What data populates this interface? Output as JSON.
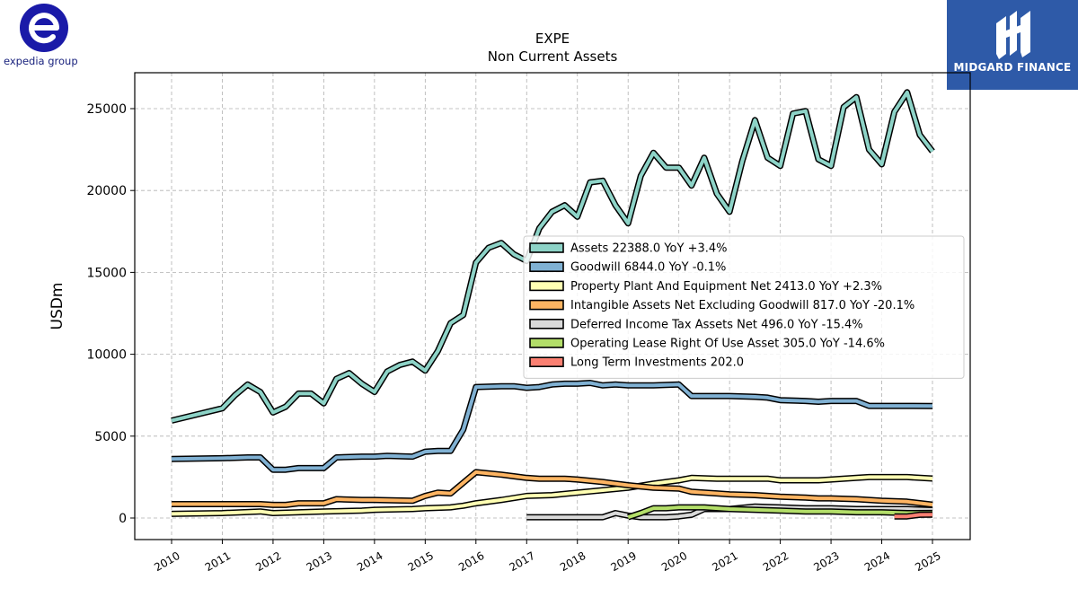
{
  "brand_left": {
    "name": "expedia group",
    "logo_icon": "expedia-e-logo-icon"
  },
  "brand_right": {
    "name": "MIDGARD FINANCE",
    "logo_icon": "midgard-logo-icon"
  },
  "chart_data": {
    "type": "line",
    "title": "EXPE",
    "subtitle": "Non Current  Assets",
    "ylabel": "USDm",
    "xlabel": "",
    "ylim": [
      -1300,
      27200
    ],
    "xlim": [
      2009.3,
      2025.8
    ],
    "xticks": [
      2010,
      2011,
      2012,
      2013,
      2014,
      2015,
      2016,
      2017,
      2018,
      2019,
      2020,
      2021,
      2022,
      2023,
      2024,
      2025
    ],
    "xtick_labels": [
      "2010",
      "2011",
      "2012",
      "2013",
      "2014",
      "2015",
      "2016",
      "2017",
      "2018",
      "2019",
      "2020",
      "2021",
      "2022",
      "2023",
      "2024",
      "2025"
    ],
    "yticks": [
      0,
      5000,
      10000,
      15000,
      20000,
      25000
    ],
    "ytick_labels": [
      "0",
      "5000",
      "10000",
      "15000",
      "20000",
      "25000"
    ],
    "grid": true,
    "legend_position": "center-right",
    "series": [
      {
        "name": "Assets",
        "legend_label": "Assets  22388.0 YoY +3.4%",
        "color": "#8dd3c7",
        "points": [
          [
            2010,
            5950
          ],
          [
            2011,
            6700
          ],
          [
            2011.25,
            7500
          ],
          [
            2011.5,
            8150
          ],
          [
            2011.75,
            7700
          ],
          [
            2012,
            6450
          ],
          [
            2012.25,
            6800
          ],
          [
            2012.5,
            7600
          ],
          [
            2012.75,
            7600
          ],
          [
            2013,
            7000
          ],
          [
            2013.25,
            8500
          ],
          [
            2013.5,
            8850
          ],
          [
            2013.75,
            8200
          ],
          [
            2014,
            7700
          ],
          [
            2014.25,
            8950
          ],
          [
            2014.5,
            9350
          ],
          [
            2014.75,
            9550
          ],
          [
            2015,
            9000
          ],
          [
            2015.25,
            10200
          ],
          [
            2015.5,
            11900
          ],
          [
            2015.75,
            12400
          ],
          [
            2016,
            15600
          ],
          [
            2016.25,
            16500
          ],
          [
            2016.5,
            16800
          ],
          [
            2016.75,
            16100
          ],
          [
            2017,
            15700
          ],
          [
            2017.25,
            17700
          ],
          [
            2017.5,
            18700
          ],
          [
            2017.75,
            19100
          ],
          [
            2018,
            18400
          ],
          [
            2018.25,
            20500
          ],
          [
            2018.5,
            20600
          ],
          [
            2018.75,
            19100
          ],
          [
            2019,
            18000
          ],
          [
            2019.25,
            20900
          ],
          [
            2019.5,
            22300
          ],
          [
            2019.75,
            21400
          ],
          [
            2020,
            21400
          ],
          [
            2020.25,
            20300
          ],
          [
            2020.5,
            22000
          ],
          [
            2020.75,
            19800
          ],
          [
            2021,
            18700
          ],
          [
            2021.25,
            21800
          ],
          [
            2021.5,
            24300
          ],
          [
            2021.75,
            22000
          ],
          [
            2022,
            21500
          ],
          [
            2022.25,
            24700
          ],
          [
            2022.5,
            24850
          ],
          [
            2022.75,
            21900
          ],
          [
            2023,
            21500
          ],
          [
            2023.25,
            25100
          ],
          [
            2023.5,
            25700
          ],
          [
            2023.75,
            22500
          ],
          [
            2024,
            21600
          ],
          [
            2024.25,
            24800
          ],
          [
            2024.5,
            26000
          ],
          [
            2024.75,
            23400
          ],
          [
            2025,
            22388
          ]
        ]
      },
      {
        "name": "Goodwill",
        "legend_label": "Goodwill  6844.0 YoY -0.1%",
        "color": "#80b1d3",
        "points": [
          [
            2010,
            3600
          ],
          [
            2011,
            3650
          ],
          [
            2011.5,
            3700
          ],
          [
            2011.75,
            3700
          ],
          [
            2012,
            2950
          ],
          [
            2012.25,
            2950
          ],
          [
            2012.5,
            3050
          ],
          [
            2012.75,
            3050
          ],
          [
            2013,
            3050
          ],
          [
            2013.25,
            3700
          ],
          [
            2013.75,
            3750
          ],
          [
            2014,
            3750
          ],
          [
            2014.25,
            3800
          ],
          [
            2014.75,
            3750
          ],
          [
            2015,
            4050
          ],
          [
            2015.25,
            4100
          ],
          [
            2015.5,
            4100
          ],
          [
            2015.75,
            5400
          ],
          [
            2016,
            8000
          ],
          [
            2016.5,
            8050
          ],
          [
            2016.75,
            8050
          ],
          [
            2017,
            7950
          ],
          [
            2017.25,
            8000
          ],
          [
            2017.5,
            8150
          ],
          [
            2017.75,
            8200
          ],
          [
            2018,
            8200
          ],
          [
            2018.25,
            8250
          ],
          [
            2018.5,
            8100
          ],
          [
            2018.75,
            8150
          ],
          [
            2019,
            8100
          ],
          [
            2019.5,
            8100
          ],
          [
            2020,
            8150
          ],
          [
            2020.25,
            7450
          ],
          [
            2020.75,
            7450
          ],
          [
            2021,
            7450
          ],
          [
            2021.5,
            7400
          ],
          [
            2021.75,
            7350
          ],
          [
            2022,
            7200
          ],
          [
            2022.5,
            7150
          ],
          [
            2022.75,
            7100
          ],
          [
            2023,
            7150
          ],
          [
            2023.5,
            7150
          ],
          [
            2023.75,
            6850
          ],
          [
            2024,
            6850
          ],
          [
            2024.5,
            6850
          ],
          [
            2025,
            6844
          ]
        ]
      },
      {
        "name": "Property Plant And Equipment Net",
        "legend_label": "Property Plant And Equipment Net  2413.0 YoY +2.3%",
        "color": "#ffffb3",
        "points": [
          [
            2010,
            250
          ],
          [
            2011,
            300
          ],
          [
            2011.75,
            400
          ],
          [
            2012,
            300
          ],
          [
            2012.5,
            350
          ],
          [
            2013,
            400
          ],
          [
            2013.75,
            450
          ],
          [
            2014,
            500
          ],
          [
            2014.75,
            550
          ],
          [
            2015,
            600
          ],
          [
            2015.5,
            650
          ],
          [
            2015.75,
            750
          ],
          [
            2016,
            900
          ],
          [
            2016.5,
            1100
          ],
          [
            2017,
            1350
          ],
          [
            2017.5,
            1400
          ],
          [
            2018,
            1550
          ],
          [
            2018.5,
            1700
          ],
          [
            2019,
            1850
          ],
          [
            2019.5,
            2100
          ],
          [
            2020,
            2300
          ],
          [
            2020.25,
            2450
          ],
          [
            2020.75,
            2400
          ],
          [
            2021,
            2400
          ],
          [
            2021.5,
            2400
          ],
          [
            2021.75,
            2400
          ],
          [
            2022,
            2300
          ],
          [
            2022.5,
            2300
          ],
          [
            2022.75,
            2300
          ],
          [
            2023,
            2350
          ],
          [
            2023.5,
            2450
          ],
          [
            2023.75,
            2500
          ],
          [
            2024,
            2500
          ],
          [
            2024.5,
            2500
          ],
          [
            2025,
            2413
          ]
        ]
      },
      {
        "name": "Intangible Assets Net Excluding Goodwill",
        "legend_label": "Intangible Assets Net Excluding Goodwill  817.0 YoY -20.1%",
        "color": "#fdb462",
        "points": [
          [
            2010,
            850
          ],
          [
            2011,
            850
          ],
          [
            2011.75,
            850
          ],
          [
            2012,
            800
          ],
          [
            2012.25,
            800
          ],
          [
            2012.5,
            900
          ],
          [
            2013,
            900
          ],
          [
            2013.25,
            1150
          ],
          [
            2013.75,
            1100
          ],
          [
            2014,
            1100
          ],
          [
            2014.75,
            1050
          ],
          [
            2015,
            1350
          ],
          [
            2015.25,
            1550
          ],
          [
            2015.5,
            1500
          ],
          [
            2016,
            2800
          ],
          [
            2016.5,
            2650
          ],
          [
            2016.75,
            2550
          ],
          [
            2017,
            2450
          ],
          [
            2017.25,
            2400
          ],
          [
            2017.75,
            2400
          ],
          [
            2018,
            2350
          ],
          [
            2018.5,
            2200
          ],
          [
            2018.75,
            2100
          ],
          [
            2019,
            2000
          ],
          [
            2019.5,
            1850
          ],
          [
            2020,
            1800
          ],
          [
            2020.25,
            1600
          ],
          [
            2020.75,
            1500
          ],
          [
            2021,
            1450
          ],
          [
            2021.5,
            1400
          ],
          [
            2022,
            1300
          ],
          [
            2022.5,
            1250
          ],
          [
            2022.75,
            1200
          ],
          [
            2023,
            1200
          ],
          [
            2023.5,
            1150
          ],
          [
            2023.75,
            1100
          ],
          [
            2024,
            1050
          ],
          [
            2024.5,
            1000
          ],
          [
            2025,
            817
          ]
        ]
      },
      {
        "name": "Deferred Income Tax Assets Net",
        "legend_label": "Deferred Income Tax Assets Net  496.0 YoY -15.4%",
        "color": "#d9d9d9",
        "points": [
          [
            2017,
            50
          ],
          [
            2017.5,
            50
          ],
          [
            2018,
            50
          ],
          [
            2018.5,
            50
          ],
          [
            2018.75,
            300
          ],
          [
            2019,
            150
          ],
          [
            2019.25,
            50
          ],
          [
            2019.75,
            50
          ],
          [
            2020,
            100
          ],
          [
            2020.25,
            200
          ],
          [
            2020.5,
            550
          ],
          [
            2021,
            550
          ],
          [
            2021.5,
            700
          ],
          [
            2022,
            650
          ],
          [
            2022.5,
            600
          ],
          [
            2023,
            600
          ],
          [
            2023.5,
            550
          ],
          [
            2023.75,
            550
          ],
          [
            2024,
            550
          ],
          [
            2024.5,
            550
          ],
          [
            2025,
            496
          ]
        ]
      },
      {
        "name": "Operating Lease Right Of Use Asset",
        "legend_label": "Operating Lease Right Of Use Asset  305.0 YoY -14.6%",
        "color": "#b3de69",
        "points": [
          [
            2019,
            50
          ],
          [
            2019.25,
            300
          ],
          [
            2019.5,
            600
          ],
          [
            2019.75,
            600
          ],
          [
            2020,
            650
          ],
          [
            2020.5,
            650
          ],
          [
            2021,
            550
          ],
          [
            2021.5,
            500
          ],
          [
            2022,
            450
          ],
          [
            2022.5,
            400
          ],
          [
            2023,
            400
          ],
          [
            2023.5,
            350
          ],
          [
            2023.75,
            350
          ],
          [
            2024,
            350
          ],
          [
            2024.5,
            300
          ],
          [
            2025,
            305
          ]
        ]
      },
      {
        "name": "Long Term Investments",
        "legend_label": "Long Term Investments  202.0",
        "color": "#fb8072",
        "points": [
          [
            2024.25,
            100
          ],
          [
            2024.5,
            100
          ],
          [
            2024.75,
            200
          ],
          [
            2025,
            202
          ]
        ]
      }
    ]
  }
}
